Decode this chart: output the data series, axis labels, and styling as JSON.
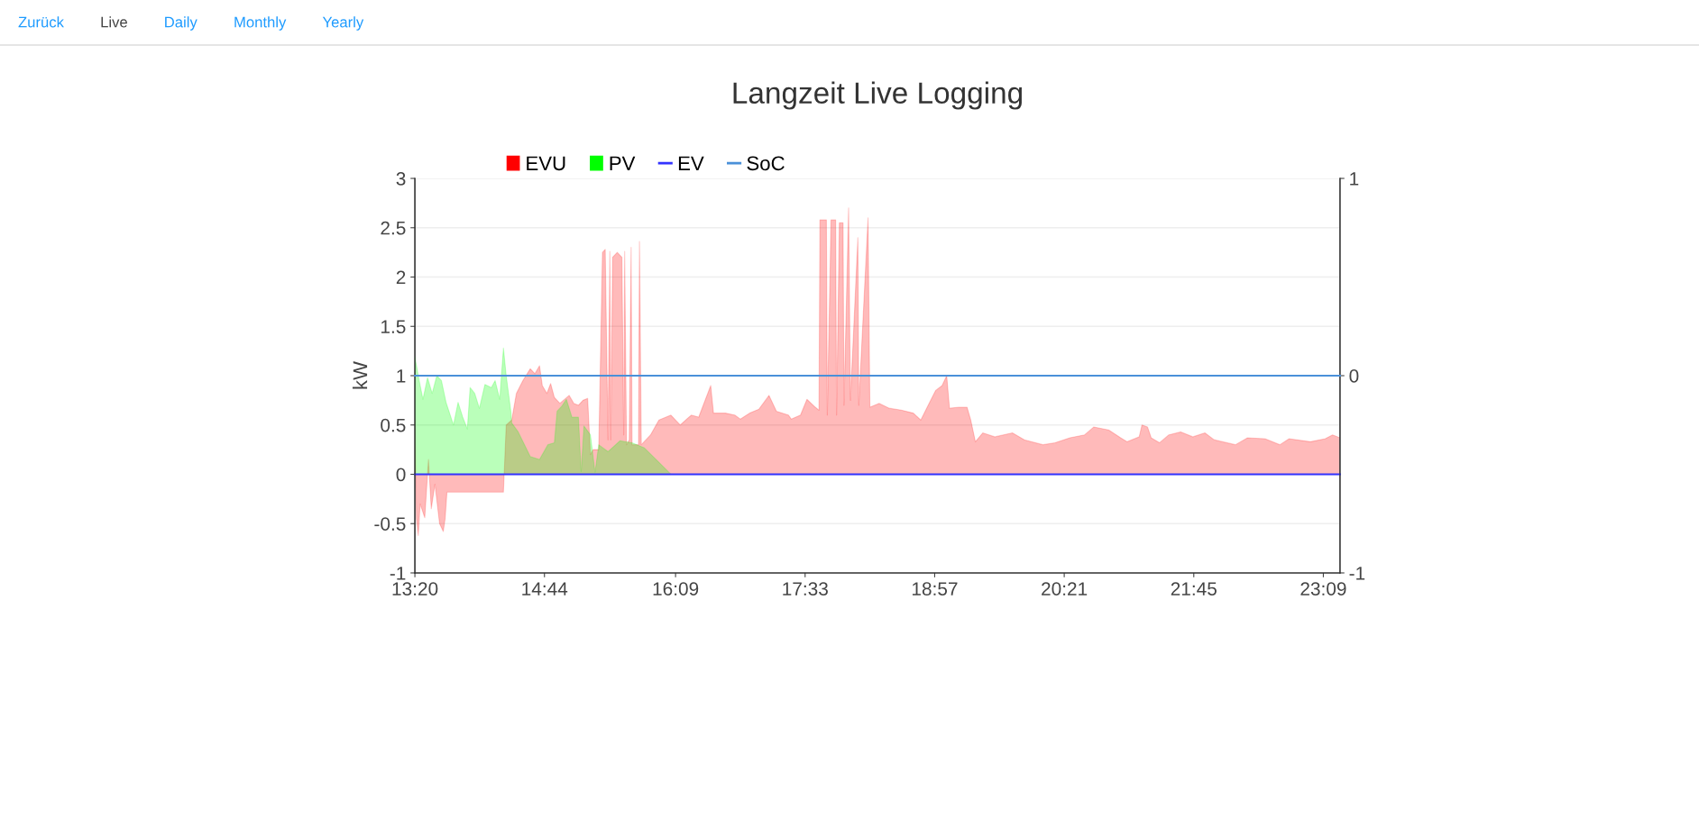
{
  "chart_data": {
    "type": "area",
    "title": "Langzeit Live Logging",
    "ylabel": "kW",
    "annotations": [
      "Zurück",
      "Live",
      "Daily",
      "Monthly",
      "Yearly"
    ],
    "xlim": [
      13.3333,
      23.33
    ],
    "xticks": [
      {
        "value": 13.3333,
        "label": "13:20"
      },
      {
        "value": 14.7333,
        "label": "14:44"
      },
      {
        "value": 16.15,
        "label": "16:09"
      },
      {
        "value": 17.55,
        "label": "17:33"
      },
      {
        "value": 18.95,
        "label": "18:57"
      },
      {
        "value": 20.35,
        "label": "20:21"
      },
      {
        "value": 21.75,
        "label": "21:45"
      },
      {
        "value": 23.15,
        "label": "23:09"
      }
    ],
    "ylim": [
      -1,
      3
    ],
    "yticks": [
      -1,
      -0.5,
      0,
      0.5,
      1,
      1.5,
      2,
      2.5,
      3
    ],
    "y2lim": [
      -1,
      1
    ],
    "y2ticks": [
      -1,
      0,
      1
    ],
    "grid": "y",
    "legend": "top",
    "series": [
      {
        "name": "EVU",
        "color": "#ff0000",
        "x": [
          13.3333,
          13.35,
          13.37,
          13.39,
          13.44,
          13.48,
          13.51,
          13.55,
          13.6,
          13.64,
          13.66,
          13.68,
          13.93,
          14.25,
          14.29,
          14.32,
          14.38,
          14.43,
          14.5,
          14.58,
          14.63,
          14.68,
          14.71,
          14.76,
          14.8,
          14.84,
          14.9,
          15.0,
          15.05,
          15.1,
          15.15,
          15.2,
          15.23,
          15.26,
          15.32,
          15.36,
          15.39,
          15.42,
          15.44,
          15.45,
          15.47,
          15.52,
          15.57,
          15.59,
          15.6,
          15.62,
          15.65,
          15.67,
          15.68,
          15.75,
          15.76,
          15.78,
          15.88,
          15.97,
          16.1,
          16.2,
          16.32,
          16.4,
          16.53,
          16.56,
          16.69,
          16.79,
          16.85,
          16.95,
          17.05,
          17.16,
          17.24,
          17.37,
          17.4,
          17.5,
          17.57,
          17.66,
          17.7,
          17.71,
          17.78,
          17.79,
          17.83,
          17.88,
          17.89,
          17.92,
          17.96,
          17.97,
          18.02,
          18.04,
          18.12,
          18.13,
          18.23,
          18.25,
          18.35,
          18.46,
          18.59,
          18.72,
          18.8,
          18.88,
          18.96,
          19.03,
          19.08,
          19.11,
          19.21,
          19.3,
          19.34,
          19.39,
          19.47,
          19.6,
          19.79,
          19.92,
          20.12,
          20.25,
          20.41,
          20.57,
          20.67,
          20.83,
          20.96,
          21.03,
          21.16,
          21.19,
          21.25,
          21.29,
          21.38,
          21.48,
          21.61,
          21.74,
          21.87,
          21.97,
          22.2,
          22.33,
          22.52,
          22.68,
          22.78,
          23.01,
          23.17,
          23.25,
          23.33
        ],
        "values": [
          0.55,
          -0.45,
          -0.62,
          -0.3,
          -0.44,
          0.15,
          -0.35,
          -0.1,
          -0.5,
          -0.58,
          -0.45,
          -0.18,
          -0.18,
          -0.18,
          -0.18,
          0.5,
          0.55,
          0.82,
          0.95,
          1.07,
          1.02,
          1.1,
          0.9,
          0.82,
          0.92,
          0.78,
          0.72,
          0.8,
          0.72,
          0.7,
          0.75,
          0.77,
          0.2,
          0.25,
          0.25,
          2.25,
          2.28,
          0.35,
          2.26,
          0.35,
          2.2,
          2.25,
          2.2,
          0.4,
          2.26,
          0.3,
          0.35,
          2.3,
          0.3,
          0.3,
          2.36,
          0.3,
          0.4,
          0.55,
          0.6,
          0.5,
          0.6,
          0.58,
          0.9,
          0.62,
          0.62,
          0.6,
          0.56,
          0.62,
          0.66,
          0.8,
          0.64,
          0.6,
          0.56,
          0.6,
          0.76,
          0.68,
          0.65,
          2.58,
          2.58,
          0.6,
          2.58,
          2.58,
          0.6,
          2.55,
          2.55,
          0.7,
          2.7,
          0.75,
          2.4,
          0.7,
          2.6,
          0.68,
          0.72,
          0.67,
          0.65,
          0.62,
          0.55,
          0.7,
          0.85,
          0.9,
          1.0,
          0.67,
          0.68,
          0.68,
          0.55,
          0.33,
          0.42,
          0.38,
          0.42,
          0.35,
          0.3,
          0.32,
          0.37,
          0.4,
          0.48,
          0.45,
          0.37,
          0.33,
          0.38,
          0.5,
          0.48,
          0.37,
          0.32,
          0.4,
          0.43,
          0.38,
          0.42,
          0.35,
          0.3,
          0.37,
          0.36,
          0.3,
          0.36,
          0.33,
          0.36,
          0.4,
          0.37
        ]
      },
      {
        "name": "PV",
        "color": "#00ff00",
        "x": [
          13.3333,
          13.38,
          13.42,
          13.47,
          13.52,
          13.57,
          13.62,
          13.67,
          13.75,
          13.8,
          13.85,
          13.9,
          13.93,
          13.98,
          14.03,
          14.09,
          14.16,
          14.2,
          14.25,
          14.29,
          14.32,
          14.37,
          14.38,
          14.45,
          14.58,
          14.68,
          14.77,
          14.84,
          14.87,
          14.92,
          14.97,
          15.03,
          15.1,
          15.13,
          15.16,
          15.23,
          15.28,
          15.32,
          15.42,
          15.55,
          15.68,
          15.81,
          15.94,
          16.1,
          16.2
        ],
        "values": [
          1.19,
          0.95,
          0.76,
          0.98,
          0.82,
          1.0,
          0.95,
          0.73,
          0.5,
          0.73,
          0.58,
          0.46,
          0.88,
          0.82,
          0.67,
          0.91,
          0.88,
          0.95,
          0.76,
          1.28,
          1.0,
          0.64,
          0.52,
          0.43,
          0.18,
          0.15,
          0.3,
          0.32,
          0.64,
          0.69,
          0.76,
          0.58,
          0.58,
          0.03,
          0.49,
          0.4,
          0.02,
          0.3,
          0.23,
          0.34,
          0.32,
          0.27,
          0.15,
          0.0,
          0.0
        ]
      },
      {
        "name": "EV",
        "type": "line",
        "color": "#3333ff",
        "x": [
          13.3333,
          23.33
        ],
        "values": [
          0,
          0
        ]
      },
      {
        "name": "SoC",
        "type": "line",
        "color": "#4a90d9",
        "axis": "y2",
        "x": [
          13.3333,
          23.33
        ],
        "values": [
          0,
          0
        ]
      }
    ]
  }
}
